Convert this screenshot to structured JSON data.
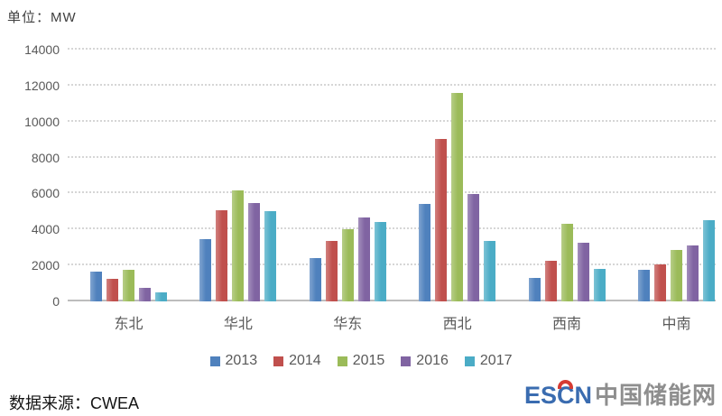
{
  "header": {
    "unit_label": "单位：MW"
  },
  "chart_data": {
    "type": "bar",
    "title": "",
    "ylabel": "MW",
    "categories": [
      "东北",
      "华北",
      "华东",
      "西北",
      "西南",
      "中南"
    ],
    "series": [
      {
        "name": "2013",
        "color": "#4F81BD",
        "values": [
          1650,
          3450,
          2400,
          5400,
          1300,
          1750
        ]
      },
      {
        "name": "2014",
        "color": "#C0504D",
        "values": [
          1250,
          5050,
          3350,
          9050,
          2250,
          2050
        ]
      },
      {
        "name": "2015",
        "color": "#9BBB59",
        "values": [
          1750,
          6150,
          4000,
          11600,
          4300,
          2850
        ]
      },
      {
        "name": "2016",
        "color": "#8064A2",
        "values": [
          750,
          5450,
          4650,
          5950,
          3250,
          3100
        ]
      },
      {
        "name": "2017",
        "color": "#4BACC6",
        "values": [
          500,
          5000,
          4400,
          3350,
          1800,
          4500
        ]
      }
    ],
    "ylim": [
      0,
      14000
    ],
    "yticks": [
      0,
      2000,
      4000,
      6000,
      8000,
      10000,
      12000,
      14000
    ],
    "grid": "dotted-horizontal",
    "legend_position": "bottom"
  },
  "footer": {
    "source_label": "数据来源：CWEA",
    "logo": {
      "text_en": "ESCN",
      "text_cn": "中国储能网"
    }
  },
  "colors": {
    "axis_text": "#595959",
    "gridline": "#d6d6d6",
    "baseline": "#bdbdbd",
    "logo_blue": "#3a6cb0",
    "logo_red": "#d63b33",
    "logo_gray": "#8e8e8e"
  }
}
